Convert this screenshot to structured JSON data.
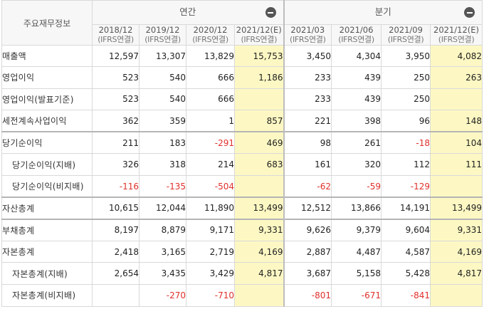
{
  "header": {
    "corner_label": "주요재무정보",
    "annual_label": "연간",
    "quarter_label": "분기"
  },
  "columns": [
    {
      "period": "2018/12",
      "basis": "(IFRS연결)",
      "estimate": false
    },
    {
      "period": "2019/12",
      "basis": "(IFRS연결)",
      "estimate": false
    },
    {
      "period": "2020/12",
      "basis": "(IFRS연결)",
      "estimate": false
    },
    {
      "period": "2021/12(E)",
      "basis": "(IFRS연결)",
      "estimate": true
    },
    {
      "period": "2021/03",
      "basis": "(IFRS연결)",
      "estimate": false
    },
    {
      "period": "2021/06",
      "basis": "(IFRS연결)",
      "estimate": false
    },
    {
      "period": "2021/09",
      "basis": "(IFRS연결)",
      "estimate": false
    },
    {
      "period": "2021/12(E)",
      "basis": "(IFRS연결)",
      "estimate": true
    }
  ],
  "rows": [
    {
      "label": "매출액",
      "indent": false,
      "values": [
        "12,597",
        "13,307",
        "13,829",
        "15,753",
        "3,450",
        "4,304",
        "3,950",
        "4,082"
      ]
    },
    {
      "label": "영업이익",
      "indent": false,
      "values": [
        "523",
        "540",
        "666",
        "1,186",
        "233",
        "439",
        "250",
        "263"
      ]
    },
    {
      "label": "영업이익(발표기준)",
      "indent": false,
      "values": [
        "523",
        "540",
        "666",
        "",
        "233",
        "439",
        "250",
        ""
      ]
    },
    {
      "label": "세전계속사업이익",
      "indent": false,
      "values": [
        "362",
        "359",
        "1",
        "857",
        "221",
        "398",
        "96",
        "148"
      ]
    },
    {
      "label": "당기순이익",
      "indent": false,
      "values": [
        "211",
        "183",
        "-291",
        "469",
        "98",
        "261",
        "-18",
        "104"
      ]
    },
    {
      "label": "당기순이익(지배)",
      "indent": true,
      "values": [
        "326",
        "318",
        "214",
        "683",
        "161",
        "320",
        "112",
        "111"
      ]
    },
    {
      "label": "당기순이익(비지배)",
      "indent": true,
      "values": [
        "-116",
        "-135",
        "-504",
        "",
        "-62",
        "-59",
        "-129",
        ""
      ]
    },
    {
      "label": "자산총계",
      "indent": false,
      "values": [
        "10,615",
        "12,044",
        "11,890",
        "13,499",
        "12,512",
        "13,866",
        "14,191",
        "13,499"
      ]
    },
    {
      "label": "부채총계",
      "indent": false,
      "values": [
        "8,197",
        "8,879",
        "9,171",
        "9,331",
        "9,626",
        "9,379",
        "9,604",
        "9,331"
      ]
    },
    {
      "label": "자본총계",
      "indent": false,
      "values": [
        "2,418",
        "3,165",
        "2,719",
        "4,169",
        "2,887",
        "4,487",
        "4,587",
        "4,169"
      ]
    },
    {
      "label": "자본총계(지배)",
      "indent": true,
      "values": [
        "2,654",
        "3,435",
        "3,429",
        "4,817",
        "3,687",
        "5,158",
        "5,428",
        "4,817"
      ]
    },
    {
      "label": "자본총계(비지배)",
      "indent": true,
      "values": [
        "",
        "-270",
        "-710",
        "",
        "-801",
        "-671",
        "-841",
        ""
      ]
    }
  ],
  "colors": {
    "estimate_bg": "#fdf8c3",
    "negative_text": "#e0302a",
    "header_bg": "#f7f7f7"
  },
  "icons": [
    "collapse-minus-icon"
  ]
}
